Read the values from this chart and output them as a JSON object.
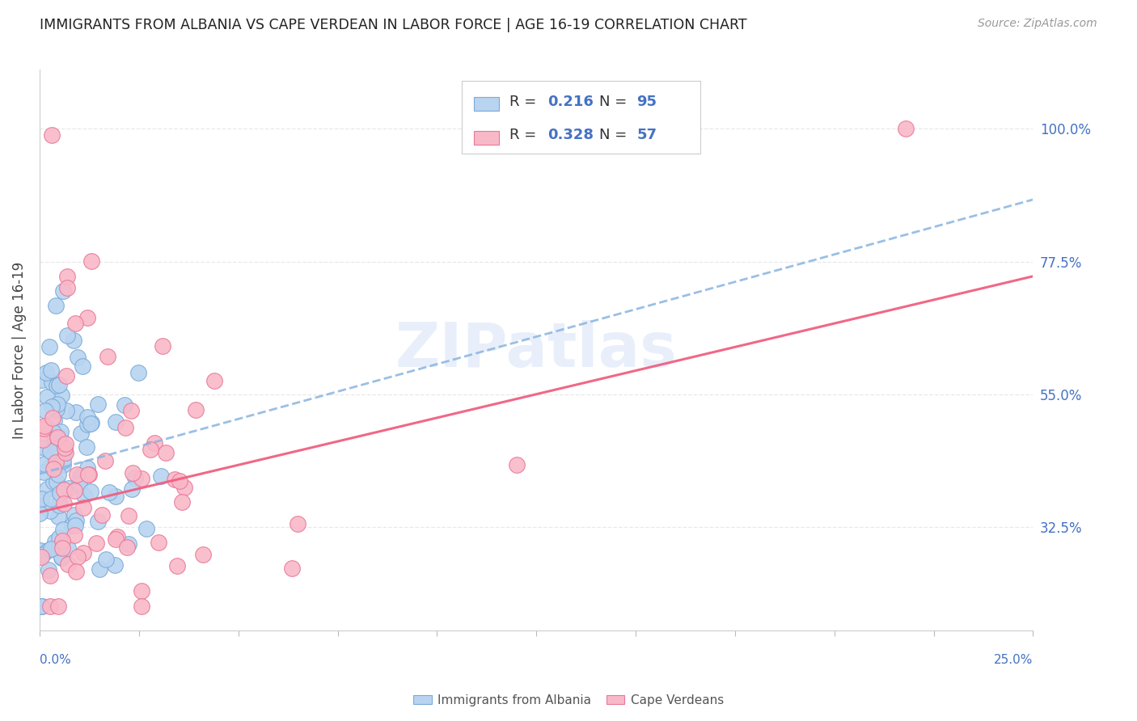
{
  "title": "IMMIGRANTS FROM ALBANIA VS CAPE VERDEAN IN LABOR FORCE | AGE 16-19 CORRELATION CHART",
  "source": "Source: ZipAtlas.com",
  "ylabel": "In Labor Force | Age 16-19",
  "ytick_values": [
    0.325,
    0.55,
    0.775,
    1.0
  ],
  "ytick_labels": [
    "32.5%",
    "55.0%",
    "77.5%",
    "100.0%"
  ],
  "xlim": [
    0.0,
    0.25
  ],
  "ylim": [
    0.15,
    1.1
  ],
  "legend_r_albania": "0.216",
  "legend_n_albania": "95",
  "legend_r_cape": "0.328",
  "legend_n_cape": "57",
  "color_albania_fill": "#b8d4f0",
  "color_albania_edge": "#7aaad8",
  "color_cape_fill": "#f9b8c8",
  "color_cape_edge": "#e87898",
  "color_albania_line": "#8ab4e0",
  "color_cape_line": "#f06080",
  "color_text_blue": "#4472c4",
  "color_label": "#555555",
  "legend_label_albania": "Immigrants from Albania",
  "legend_label_cape": "Cape Verdeans",
  "grid_color": "#e8e8e8",
  "background_color": "#ffffff",
  "watermark": "ZIPatlas",
  "albania_trend_x": [
    0.0,
    0.25
  ],
  "albania_trend_y": [
    0.415,
    0.88
  ],
  "cape_trend_x": [
    0.0,
    0.25
  ],
  "cape_trend_y": [
    0.35,
    0.75
  ]
}
